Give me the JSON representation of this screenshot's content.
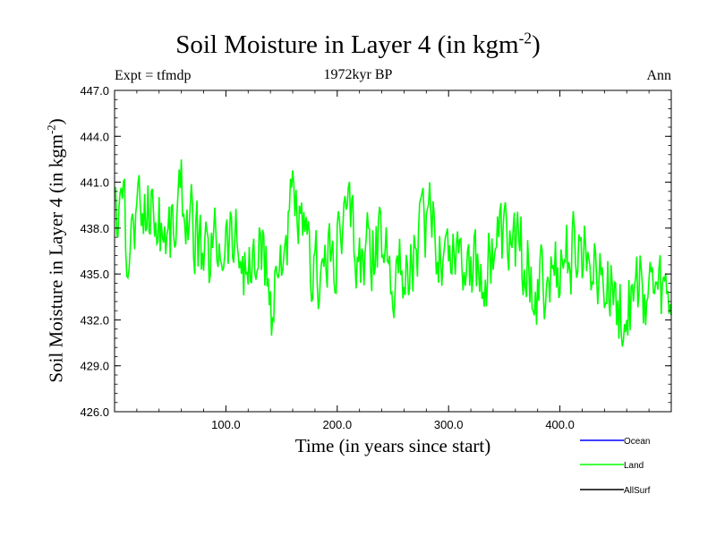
{
  "chart_data": {
    "type": "line",
    "title_main": "Soil Moisture in Layer 4 (in kgm",
    "title_sup": "-2",
    "title_close": ")",
    "subtitle": "1972kyr BP",
    "expt_label": "Expt = tfmdp",
    "season_label": "Ann",
    "xlabel": "Time (in years since start)",
    "ylabel_main": "Soil Moisture in Layer 4 (in kgm",
    "ylabel_sup": "-2",
    "ylabel_close": ")",
    "xlim": [
      0,
      500
    ],
    "ylim": [
      426.0,
      447.0
    ],
    "xticks": [
      100,
      200,
      300,
      400
    ],
    "xtick_labels": [
      "100.0",
      "200.0",
      "300.0",
      "400.0"
    ],
    "yticks": [
      426,
      429,
      432,
      435,
      438,
      441,
      444,
      447
    ],
    "ytick_labels": [
      "426.0",
      "429.0",
      "432.0",
      "435.0",
      "438.0",
      "441.0",
      "444.0",
      "447.0"
    ],
    "legend": [
      {
        "name": "Ocean",
        "color": "#0000ff"
      },
      {
        "name": "Land",
        "color": "#00ff00"
      },
      {
        "name": "AllSurf",
        "color": "#000000"
      }
    ],
    "series": [
      {
        "name": "Land",
        "color": "#00ff00",
        "x_start": 1,
        "x_step": 10,
        "note": "anchor points every 10 years; series is annual with high-frequency variability",
        "values": [
          439.0,
          437.5,
          438.6,
          439.5,
          438.2,
          437.8,
          440.2,
          438.0,
          435.5,
          437.2,
          437.6,
          437.0,
          434.6,
          436.5,
          433.0,
          437.0,
          439.7,
          436.2,
          435.0,
          436.0,
          437.5,
          438.8,
          436.0,
          436.2,
          437.0,
          435.5,
          434.8,
          437.0,
          438.5,
          437.0,
          437.0,
          437.2,
          436.0,
          434.5,
          437.0,
          436.8,
          437.0,
          435.7,
          434.0,
          434.5,
          435.5,
          436.6,
          436.3,
          436.8,
          434.0,
          433.5,
          432.5,
          434.2,
          434.0,
          433.5
        ]
      }
    ]
  }
}
